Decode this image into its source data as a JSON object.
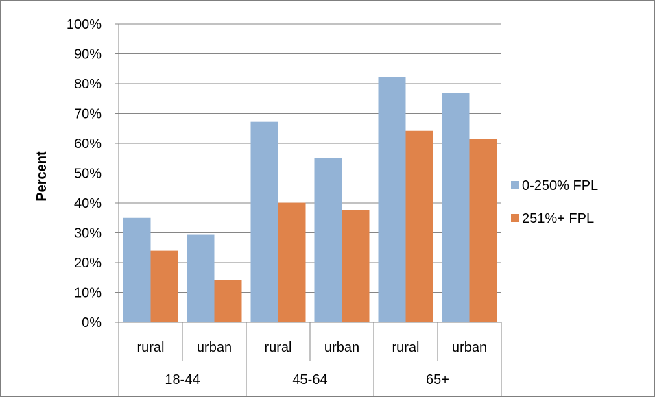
{
  "chart_data": {
    "type": "bar",
    "ylabel": "Percent",
    "ylim": [
      0,
      100
    ],
    "y_ticks": [
      "0%",
      "10%",
      "20%",
      "30%",
      "40%",
      "50%",
      "60%",
      "70%",
      "80%",
      "90%",
      "100%"
    ],
    "grid": true,
    "legend_position": "right",
    "groups": [
      {
        "label": "18-44",
        "categories": [
          "rural",
          "urban"
        ]
      },
      {
        "label": "45-64",
        "categories": [
          "rural",
          "urban"
        ]
      },
      {
        "label": "65+",
        "categories": [
          "rural",
          "urban"
        ]
      }
    ],
    "categories": [
      "18-44 rural",
      "18-44 urban",
      "45-64 rural",
      "45-64 urban",
      "65+ rural",
      "65+ urban"
    ],
    "series": [
      {
        "name": "0-250% FPL",
        "color": "#93b3d6",
        "values": [
          35,
          29.3,
          67.2,
          55.1,
          82.1,
          76.8
        ]
      },
      {
        "name": "251%+ FPL",
        "color": "#e0834a",
        "values": [
          24,
          14.2,
          40.1,
          37.5,
          64.2,
          61.6
        ]
      }
    ]
  }
}
